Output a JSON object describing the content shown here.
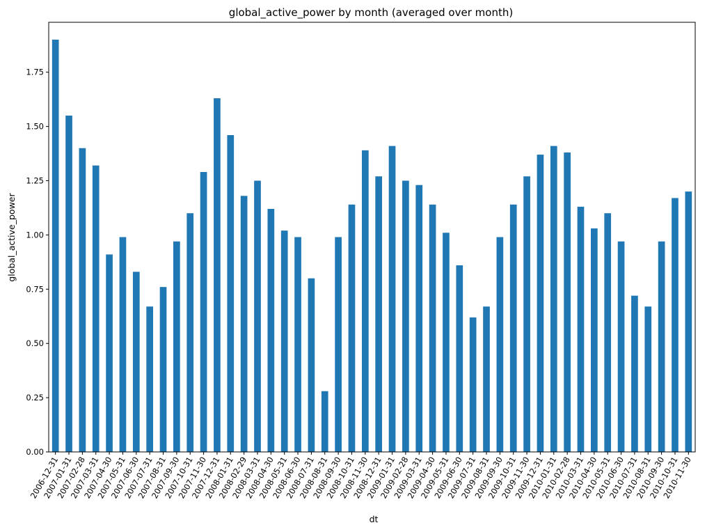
{
  "chart_data": {
    "type": "bar",
    "title": "global_active_power by month (averaged over month)",
    "xlabel": "dt",
    "ylabel": "global_active_power",
    "color": "#1f77b4",
    "ylim": [
      0,
      1.98
    ],
    "yticks": [
      "0.00",
      "0.25",
      "0.50",
      "0.75",
      "1.00",
      "1.25",
      "1.50",
      "1.75"
    ],
    "grid": false,
    "categories": [
      "2006-12-31",
      "2007-01-31",
      "2007-02-28",
      "2007-03-31",
      "2007-04-30",
      "2007-05-31",
      "2007-06-30",
      "2007-07-31",
      "2007-08-31",
      "2007-09-30",
      "2007-10-31",
      "2007-11-30",
      "2007-12-31",
      "2008-01-31",
      "2008-02-29",
      "2008-03-31",
      "2008-04-30",
      "2008-05-31",
      "2008-06-30",
      "2008-07-31",
      "2008-08-31",
      "2008-09-30",
      "2008-10-31",
      "2008-11-30",
      "2008-12-31",
      "2009-01-31",
      "2009-02-28",
      "2009-03-31",
      "2009-04-30",
      "2009-05-31",
      "2009-06-30",
      "2009-07-31",
      "2009-08-31",
      "2009-09-30",
      "2009-10-31",
      "2009-11-30",
      "2009-12-31",
      "2010-01-31",
      "2010-02-28",
      "2010-03-31",
      "2010-04-30",
      "2010-05-31",
      "2010-06-30",
      "2010-07-31",
      "2010-08-31",
      "2010-09-30",
      "2010-10-31",
      "2010-11-30"
    ],
    "values": [
      1.9,
      1.55,
      1.4,
      1.32,
      0.91,
      0.99,
      0.83,
      0.67,
      0.76,
      0.97,
      1.1,
      1.29,
      1.63,
      1.46,
      1.18,
      1.25,
      1.12,
      1.02,
      0.99,
      0.8,
      0.28,
      0.99,
      1.14,
      1.39,
      1.27,
      1.41,
      1.25,
      1.23,
      1.14,
      1.01,
      0.86,
      0.62,
      0.67,
      0.99,
      1.14,
      1.27,
      1.37,
      1.41,
      1.38,
      1.13,
      1.03,
      1.1,
      0.97,
      0.72,
      0.67,
      0.97,
      1.17,
      1.2
    ]
  }
}
